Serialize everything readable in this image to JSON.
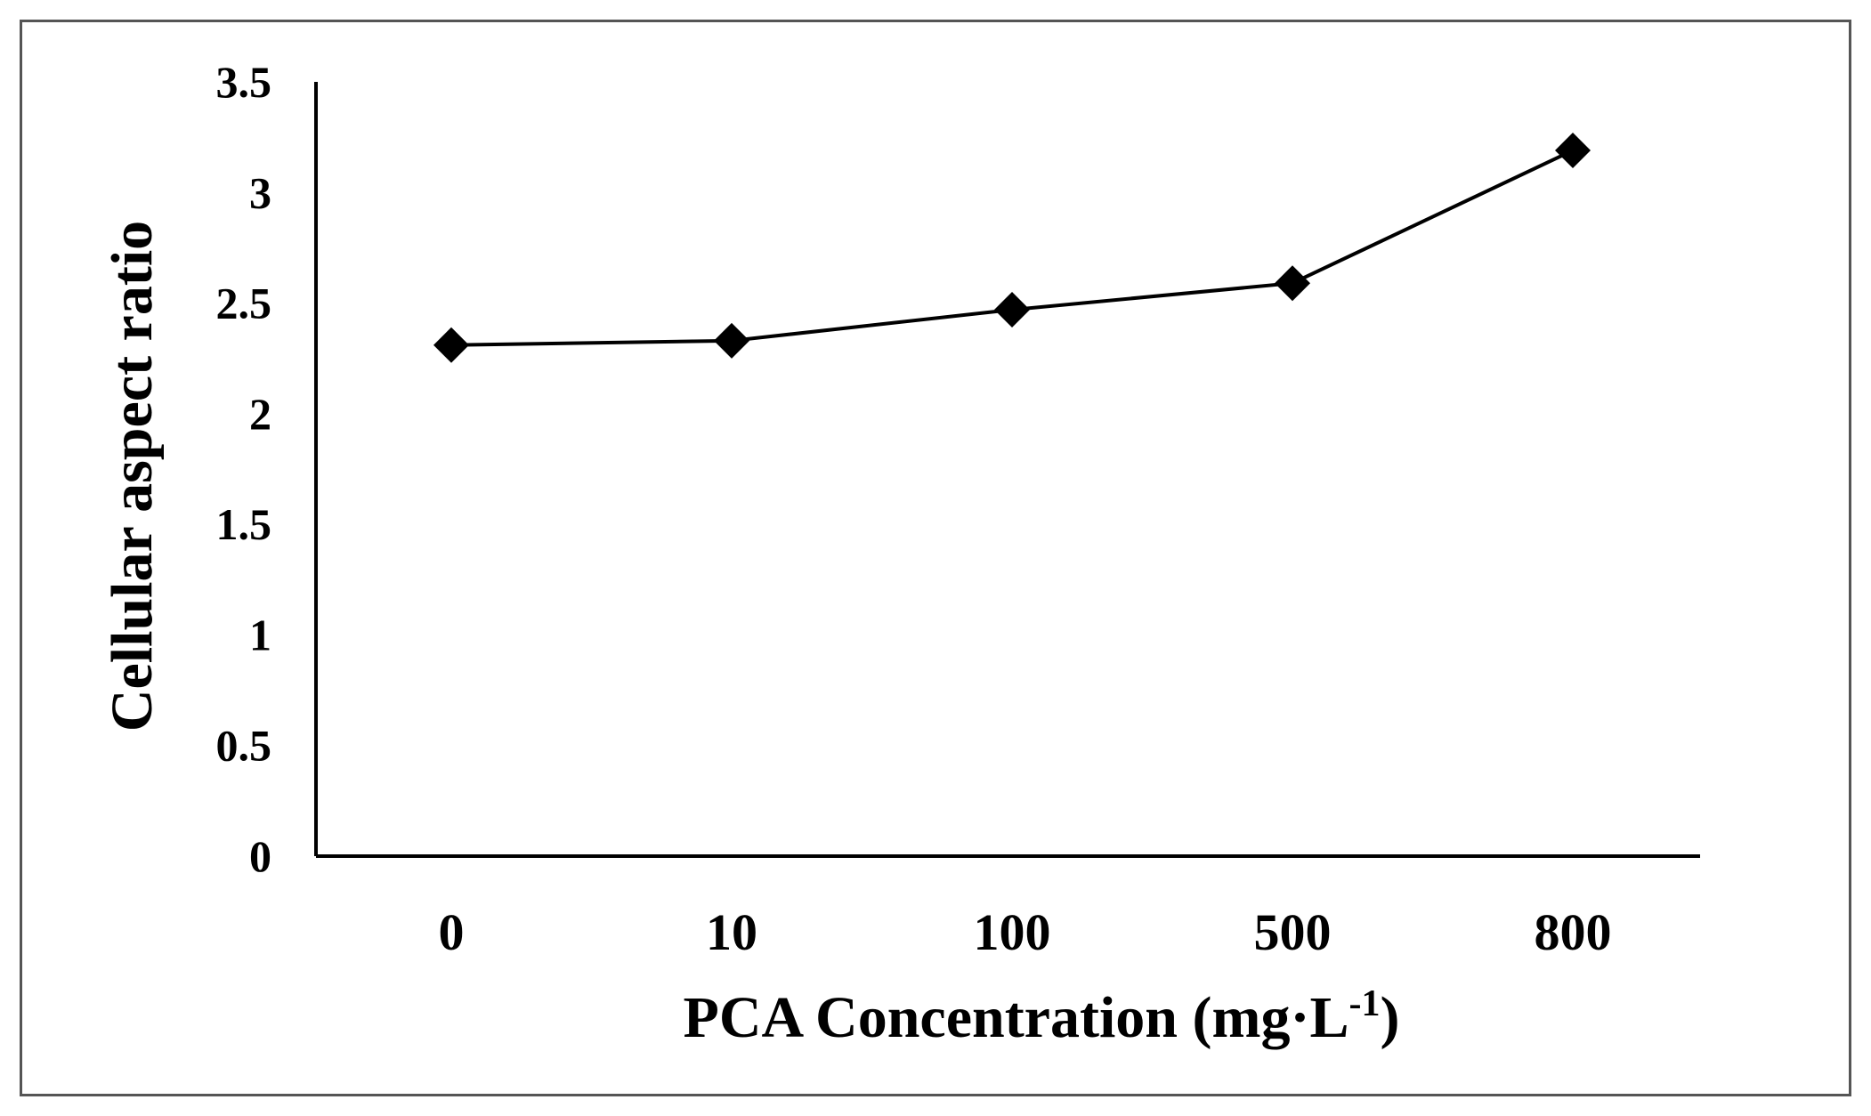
{
  "chart_data": {
    "type": "line",
    "title": "",
    "xlabel": "PCA Concentration (mg·L",
    "xlabel_sup": "-1",
    "xlabel_suffix": ")",
    "ylabel": "Cellular  aspect ratio",
    "categories": [
      "0",
      "10",
      "100",
      "500",
      "800"
    ],
    "series": [
      {
        "name": "Cellular aspect ratio",
        "values": [
          2.31,
          2.33,
          2.47,
          2.59,
          3.19
        ],
        "marker": "diamond",
        "color": "#000000"
      }
    ],
    "ylim": [
      0,
      3.5
    ],
    "yticks": [
      "0",
      "0.5",
      "1",
      "1.5",
      "2",
      "2.5",
      "3",
      "3.5"
    ],
    "grid": false,
    "legend": "none"
  }
}
